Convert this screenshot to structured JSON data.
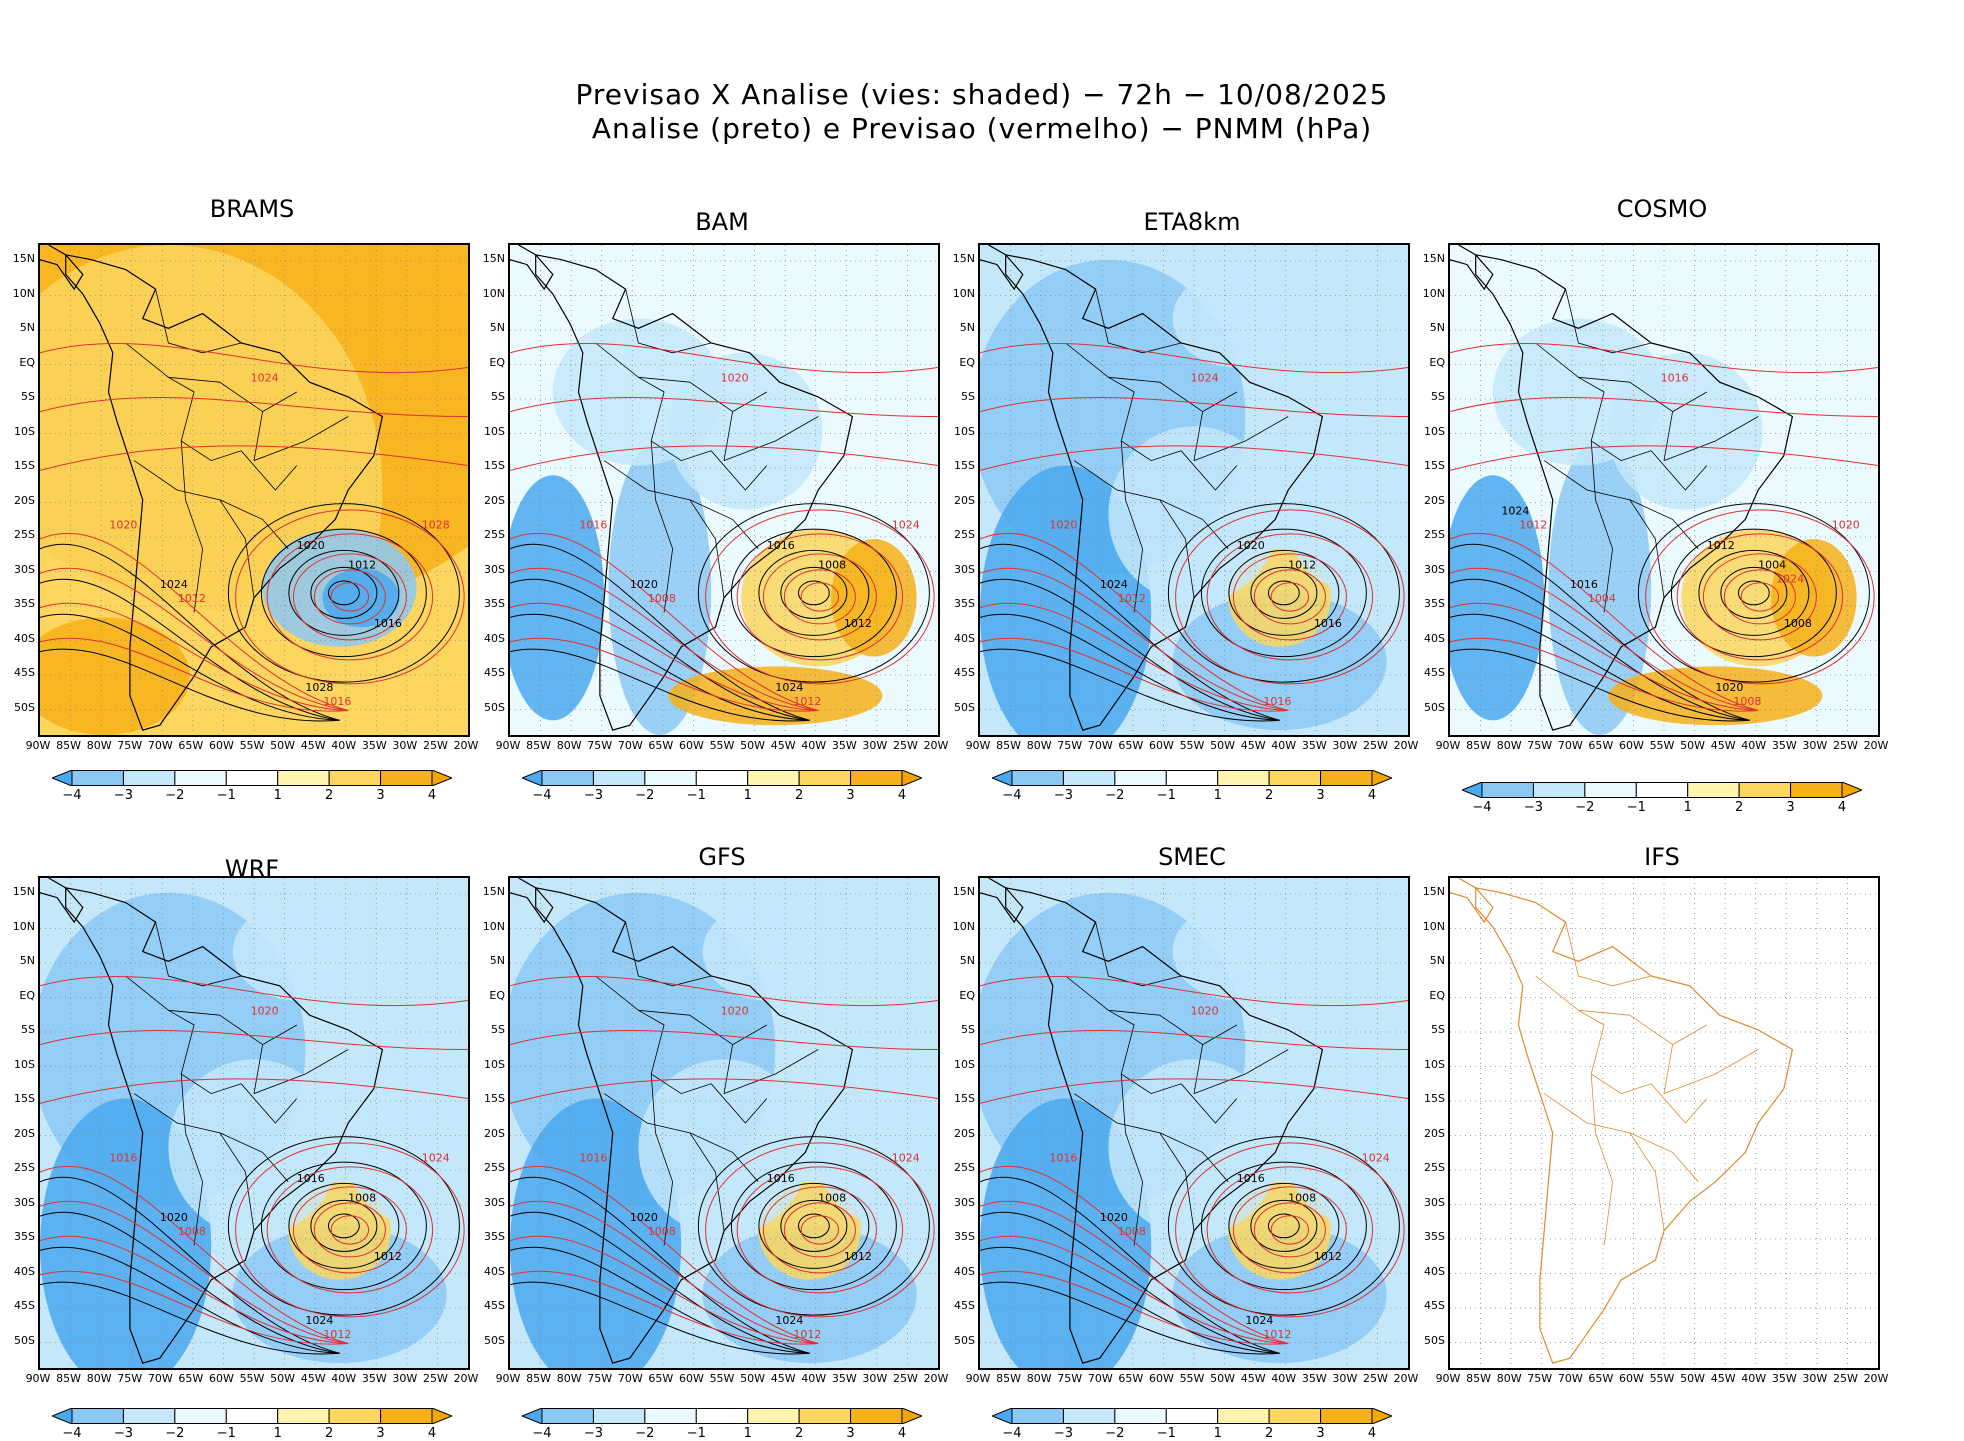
{
  "figure": {
    "title_line1": "Previsao X Analise (vies: shaded) − 72h − 10/08/2025",
    "title_line2": "Analise (preto) e Previsao (vermelho) − PNMM (hPa)"
  },
  "chart_data": {
    "type": "heatmap",
    "variable": "PNMM (hPa)",
    "lead_time": "72h",
    "valid_date": "10/08/2025",
    "analysis_contour_color": "#000000",
    "forecast_contour_color": "#e03030",
    "lat_ticks": [
      "15N",
      "10N",
      "5N",
      "EQ",
      "5S",
      "10S",
      "15S",
      "20S",
      "25S",
      "30S",
      "35S",
      "40S",
      "45S",
      "50S"
    ],
    "lon_ticks": [
      "90W",
      "85W",
      "80W",
      "75W",
      "70W",
      "65W",
      "60W",
      "55W",
      "50W",
      "45W",
      "40W",
      "35W",
      "30W",
      "25W",
      "20W"
    ],
    "colorbar": {
      "labels": [
        "−4",
        "−3",
        "−2",
        "−1",
        "1",
        "2",
        "3",
        "4"
      ],
      "colors": [
        "#4aa8ee",
        "#8cc8f4",
        "#c4e8fa",
        "#eafaff",
        "#ffffff",
        "#fff4b0",
        "#fcd65e",
        "#f6b018",
        "#f3a600"
      ]
    },
    "panels": [
      {
        "name": "BRAMS",
        "bias": "positive",
        "contours": [
          "1012",
          "1016",
          "1020",
          "1024",
          "1028"
        ]
      },
      {
        "name": "BAM",
        "bias": "mixed",
        "contours": [
          "1008",
          "1012",
          "1016",
          "1020",
          "1024"
        ]
      },
      {
        "name": "ETA8km",
        "bias": "negative",
        "contours": [
          "1012",
          "1016",
          "1020",
          "1024"
        ]
      },
      {
        "name": "COSMO",
        "bias": "mixed",
        "contours": [
          "1004",
          "1008",
          "1012",
          "1016",
          "1020",
          "1024"
        ]
      },
      {
        "name": "WRF",
        "bias": "negative",
        "contours": [
          "1008",
          "1012",
          "1016",
          "1020",
          "1024"
        ]
      },
      {
        "name": "GFS",
        "bias": "negative",
        "contours": [
          "1008",
          "1012",
          "1016",
          "1020",
          "1024"
        ]
      },
      {
        "name": "SMEC",
        "bias": "negative",
        "contours": [
          "1008",
          "1012",
          "1016",
          "1020",
          "1024"
        ]
      },
      {
        "name": "IFS",
        "bias": "none",
        "contours": []
      }
    ]
  }
}
